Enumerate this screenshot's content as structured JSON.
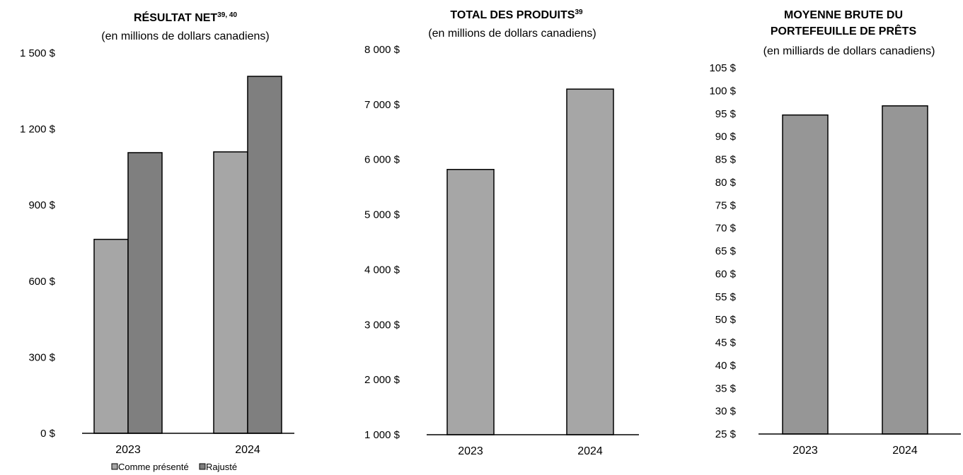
{
  "chart_data": [
    {
      "type": "bar",
      "title": "RÉSULTAT NET",
      "title_superscript": "39, 40",
      "subtitle": "(en millions de dollars canadiens)",
      "categories": [
        "2023",
        "2024"
      ],
      "series": [
        {
          "name": "Comme présenté",
          "values": [
            765,
            1110
          ],
          "color": "#a6a6a6"
        },
        {
          "name": "Rajusté",
          "values": [
            1107,
            1408
          ],
          "color": "#7f7f7f"
        }
      ],
      "ylim": [
        0,
        1500
      ],
      "yticks": [
        0,
        300,
        600,
        900,
        1200,
        1500
      ],
      "ytick_labels": [
        "0 $",
        "300 $",
        "600 $",
        "900 $",
        "1 200 $",
        "1 500 $"
      ],
      "legend": {
        "position": "bottom",
        "items": [
          "Comme présenté",
          "Rajusté"
        ]
      },
      "grid": false
    },
    {
      "type": "bar",
      "title": "TOTAL DES PRODUITS",
      "title_superscript": "39",
      "subtitle": "(en millions de dollars canadiens)",
      "categories": [
        "2023",
        "2024"
      ],
      "values": [
        5820,
        7280
      ],
      "color": "#a6a6a6",
      "ylim": [
        1000,
        8000
      ],
      "yticks": [
        1000,
        2000,
        3000,
        4000,
        5000,
        6000,
        7000,
        8000
      ],
      "ytick_labels": [
        "1 000 $",
        "2 000 $",
        "3 000 $",
        "4 000 $",
        "5 000 $",
        "6 000 $",
        "7 000 $",
        "8 000 $"
      ],
      "grid": false
    },
    {
      "type": "bar",
      "title": "MOYENNE BRUTE DU PORTEFEUILLE DE PRÊTS",
      "title_lines": [
        "MOYENNE BRUTE DU",
        "PORTEFEUILLE DE PRÊTS"
      ],
      "subtitle": "(en milliards de dollars canadiens)",
      "categories": [
        "2023",
        "2024"
      ],
      "values": [
        94.7,
        96.7
      ],
      "color": "#969696",
      "ylim": [
        25,
        105
      ],
      "yticks": [
        25,
        30,
        35,
        40,
        45,
        50,
        55,
        60,
        65,
        70,
        75,
        80,
        85,
        90,
        95,
        100,
        105
      ],
      "ytick_labels": [
        "25 $",
        "30 $",
        "35 $",
        "40 $",
        "45 $",
        "50 $",
        "55 $",
        "60 $",
        "65 $",
        "70 $",
        "75 $",
        "80 $",
        "85 $",
        "90 $",
        "95 $",
        "100 $",
        "105 $"
      ],
      "grid": false
    }
  ]
}
